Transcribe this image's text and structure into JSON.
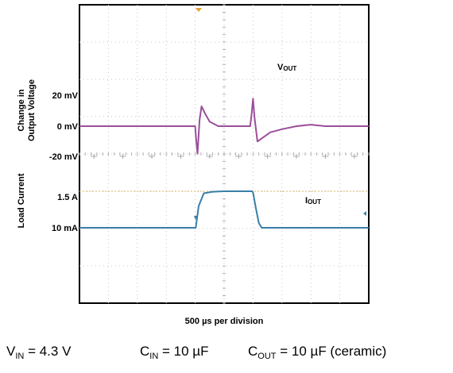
{
  "chart_data": {
    "type": "line",
    "xlabel": "500 µs per division",
    "x_divisions": 10,
    "grid": true,
    "y_axis_titles": {
      "upper": [
        "Change in",
        "Output Voltage"
      ],
      "lower": "Load Current"
    },
    "tick_labels": {
      "voltage": [
        "20 mV",
        "0 mV",
        "-20 mV"
      ],
      "current": [
        "1.5 A",
        "10 mA"
      ]
    },
    "series": [
      {
        "name": "V",
        "name_sub": "OUT",
        "unit": "mV",
        "color": "#9b4f9b",
        "x_divisions": [
          0,
          4.0,
          4.03,
          4.08,
          4.15,
          4.22,
          4.35,
          4.5,
          4.8,
          5.5,
          5.9,
          5.95,
          6.0,
          6.05,
          6.15,
          6.3,
          6.6,
          7.0,
          7.5,
          8.0,
          8.5,
          9.0,
          10
        ],
        "values": [
          0,
          0,
          -8,
          -18,
          4,
          13,
          8,
          3,
          0,
          0,
          0,
          8,
          18,
          6,
          -10,
          -8,
          -4,
          -2,
          0,
          1,
          0,
          0,
          0
        ]
      },
      {
        "name": "I",
        "name_sub": "OUT",
        "unit": "A",
        "color": "#3a7ea8",
        "x_divisions": [
          0,
          4.02,
          4.12,
          4.3,
          4.6,
          5.0,
          5.5,
          5.97,
          6.0,
          6.1,
          6.2,
          6.3,
          10
        ],
        "values": [
          0.01,
          0.01,
          0.9,
          1.42,
          1.48,
          1.5,
          1.5,
          1.5,
          1.45,
          0.8,
          0.2,
          0.01,
          0.01
        ]
      }
    ],
    "reference_level": {
      "label": "1.5 A",
      "color": "#e0c288"
    },
    "trigger_marker_color": "#e0a030"
  },
  "conditions": [
    {
      "main": "V",
      "sub": "IN",
      "rest": " = 4.3 V"
    },
    {
      "main": "C",
      "sub": "IN",
      "rest": " = 10 µF"
    },
    {
      "main": "C",
      "sub": "OUT",
      "rest": " = 10 µF (ceramic)"
    }
  ]
}
